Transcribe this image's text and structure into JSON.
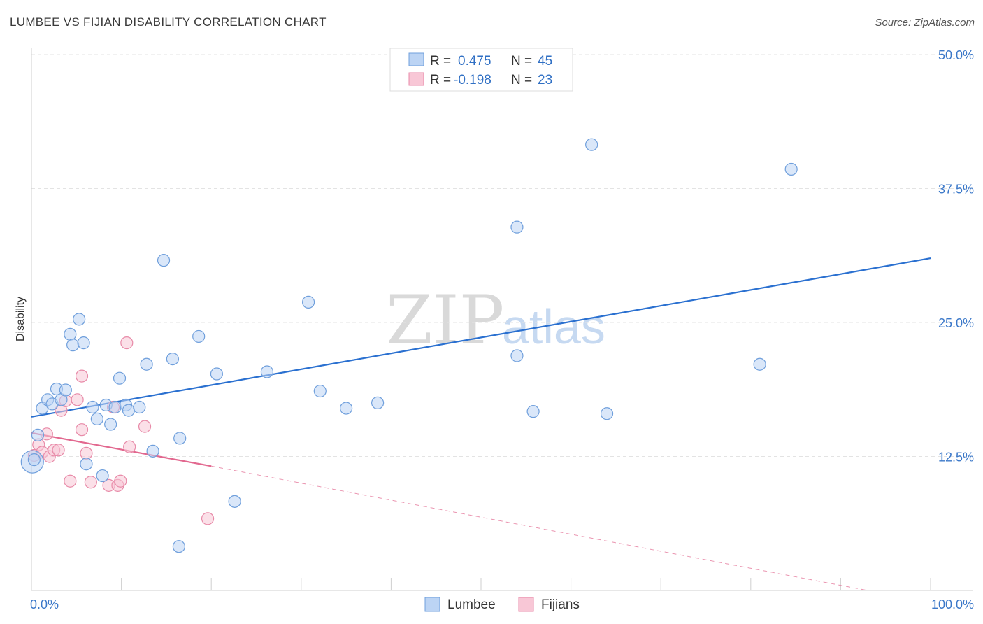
{
  "title": "LUMBEE VS FIJIAN DISABILITY CORRELATION CHART",
  "source": "Source: ZipAtlas.com",
  "watermark": {
    "zip": "ZIP",
    "atlas": "atlas"
  },
  "legend": {
    "rows": [
      {
        "r_label": "R =",
        "r_value": "0.475",
        "n_label": "N =",
        "n_value": "45"
      },
      {
        "r_label": "R =",
        "r_value": "-0.198",
        "n_label": "N =",
        "n_value": "23"
      }
    ]
  },
  "colors": {
    "lumbee_fill": "#bcd4f4",
    "lumbee_stroke": "#6f9fdc",
    "lumbee_line": "#2a70d0",
    "fijian_fill": "#f8c7d6",
    "fijian_stroke": "#e88aa8",
    "fijian_line": "#e2688f",
    "grid": "#e3e3e3",
    "tick_label": "#3b78c9"
  },
  "chart_data": {
    "type": "scatter",
    "title": "LUMBEE VS FIJIAN DISABILITY CORRELATION CHART",
    "xlabel": "",
    "ylabel": "Disability",
    "xlim": [
      0,
      100
    ],
    "ylim": [
      0,
      50
    ],
    "x_tick_labels": [
      {
        "value": 0,
        "label": "0.0%"
      },
      {
        "value": 100,
        "label": "100.0%"
      }
    ],
    "y_tick_labels": [
      {
        "value": 12.5,
        "label": "12.5%"
      },
      {
        "value": 25,
        "label": "25.0%"
      },
      {
        "value": 37.5,
        "label": "37.5%"
      },
      {
        "value": 50,
        "label": "50.0%"
      }
    ],
    "grid": true,
    "legend_position": "top-center",
    "series": [
      {
        "name": "Lumbee",
        "r": 0.475,
        "n": 45,
        "trend": {
          "x": [
            0,
            100
          ],
          "y": [
            16.2,
            31.0
          ]
        },
        "points": [
          [
            0.1,
            12.0
          ],
          [
            0.7,
            14.5
          ],
          [
            1.2,
            17.0
          ],
          [
            1.8,
            17.8
          ],
          [
            2.3,
            17.4
          ],
          [
            2.8,
            18.8
          ],
          [
            3.3,
            17.8
          ],
          [
            3.8,
            18.7
          ],
          [
            4.3,
            23.9
          ],
          [
            4.6,
            22.9
          ],
          [
            5.3,
            25.3
          ],
          [
            5.8,
            23.1
          ],
          [
            6.1,
            11.8
          ],
          [
            6.8,
            17.1
          ],
          [
            7.3,
            16.0
          ],
          [
            7.9,
            10.7
          ],
          [
            8.3,
            17.3
          ],
          [
            8.8,
            15.5
          ],
          [
            9.3,
            17.1
          ],
          [
            9.8,
            19.8
          ],
          [
            10.5,
            17.3
          ],
          [
            10.8,
            16.8
          ],
          [
            12.0,
            17.1
          ],
          [
            12.8,
            21.1
          ],
          [
            13.5,
            13.0
          ],
          [
            14.7,
            30.8
          ],
          [
            15.7,
            21.6
          ],
          [
            16.5,
            14.2
          ],
          [
            16.4,
            4.1
          ],
          [
            18.6,
            23.7
          ],
          [
            20.6,
            20.2
          ],
          [
            22.6,
            8.3
          ],
          [
            26.2,
            20.4
          ],
          [
            30.8,
            26.9
          ],
          [
            32.1,
            18.6
          ],
          [
            35.0,
            17.0
          ],
          [
            38.5,
            17.5
          ],
          [
            54.0,
            33.9
          ],
          [
            54.0,
            21.9
          ],
          [
            55.8,
            16.7
          ],
          [
            62.3,
            41.6
          ],
          [
            64.0,
            16.5
          ],
          [
            81.0,
            21.1
          ],
          [
            84.5,
            39.3
          ],
          [
            0.3,
            12.2
          ]
        ]
      },
      {
        "name": "Fijians",
        "r": -0.198,
        "n": 23,
        "trend": {
          "x": [
            0,
            20
          ],
          "y": [
            14.7,
            11.6
          ]
        },
        "trend_extended": {
          "x": [
            20,
            93
          ],
          "y": [
            11.6,
            0.0
          ]
        },
        "points": [
          [
            0.3,
            12.6
          ],
          [
            0.8,
            13.6
          ],
          [
            1.2,
            12.9
          ],
          [
            1.7,
            14.6
          ],
          [
            2.0,
            12.5
          ],
          [
            2.5,
            13.1
          ],
          [
            3.0,
            13.1
          ],
          [
            3.3,
            16.8
          ],
          [
            3.8,
            17.7
          ],
          [
            4.3,
            10.2
          ],
          [
            5.1,
            17.8
          ],
          [
            5.6,
            15.0
          ],
          [
            5.6,
            20.0
          ],
          [
            6.1,
            12.8
          ],
          [
            6.6,
            10.1
          ],
          [
            8.6,
            9.8
          ],
          [
            9.1,
            17.1
          ],
          [
            9.6,
            9.8
          ],
          [
            9.9,
            10.2
          ],
          [
            10.6,
            23.1
          ],
          [
            10.9,
            13.4
          ],
          [
            12.6,
            15.3
          ],
          [
            19.6,
            6.7
          ]
        ]
      }
    ]
  },
  "bottom_legend": {
    "items": [
      {
        "label": "Lumbee"
      },
      {
        "label": "Fijians"
      }
    ]
  }
}
